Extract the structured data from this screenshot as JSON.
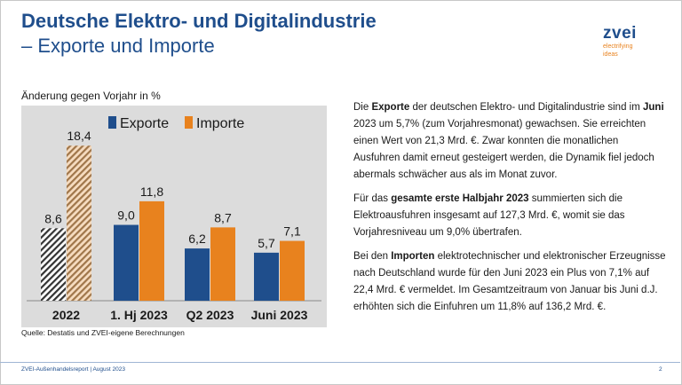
{
  "header": {
    "title": "Deutsche Elektro- und Digitalindustrie",
    "subtitle": "– Exporte und Importe"
  },
  "logo": {
    "word": "zvei",
    "tagline_1": "electrifying",
    "tagline_2": "ideas"
  },
  "chart_caption": "Änderung gegen Vorjahr in %",
  "source": "Quelle: Destatis und ZVEI-eigene Berechnungen",
  "chart_data": {
    "type": "bar",
    "categories": [
      "2022",
      "1. Hj 2023",
      "Q2 2023",
      "Juni 2023"
    ],
    "series": [
      {
        "name": "Exporte",
        "values": [
          8.6,
          9.0,
          6.2,
          5.7
        ],
        "value_labels": [
          "8,6",
          "9,0",
          "6,2",
          "5,7"
        ]
      },
      {
        "name": "Importe",
        "values": [
          18.4,
          11.8,
          8.7,
          7.1
        ],
        "value_labels": [
          "18,4",
          "11,8",
          "8,7",
          "7,1"
        ]
      }
    ],
    "hatched_categories": [
      "2022"
    ],
    "ylabel": "Änderung gegen Vorjahr in %",
    "ylim": [
      0,
      20
    ],
    "legend_position": "top",
    "grid": false
  },
  "colors": {
    "exporte": "#1f4e8c",
    "importe": "#e8821e",
    "title": "#1f4e8c",
    "panel": "#dcdcdc"
  },
  "paragraphs": [
    [
      {
        "t": "Die ",
        "b": false
      },
      {
        "t": "Exporte",
        "b": true
      },
      {
        "t": " der deutschen Elektro- und Digitalindustrie sind im ",
        "b": false
      },
      {
        "t": "Juni",
        "b": true
      },
      {
        "t": " 2023 um 5,7% (zum Vorjahresmonat) gewachsen. Sie erreichten einen Wert von 21,3 Mrd. €. Zwar konnten die monatlichen Ausfuhren damit erneut gesteigert werden, die Dynamik fiel jedoch abermals schwächer aus als im Monat zuvor.",
        "b": false
      }
    ],
    [
      {
        "t": "Für das ",
        "b": false
      },
      {
        "t": "gesamte erste Halbjahr 2023",
        "b": true
      },
      {
        "t": " summierten sich die Elektroausfuhren insgesamt auf 127,3 Mrd. €, womit sie das Vorjahresniveau um 9,0% übertrafen.",
        "b": false
      }
    ],
    [
      {
        "t": "Bei den ",
        "b": false
      },
      {
        "t": "Importen",
        "b": true
      },
      {
        "t": " elektrotechnischer und elektronischer Erzeugnisse nach Deutschland wurde für den Juni 2023 ein Plus von 7,1% auf 22,4 Mrd. € vermeldet. Im Gesamtzeitraum von Januar bis Juni d.J. erhöhten sich die Einfuhren um 11,8% auf 136,2 Mrd. €.",
        "b": false
      }
    ]
  ],
  "footer": {
    "left": "ZVEI-Außenhandelsreport | August 2023",
    "page": "2"
  }
}
